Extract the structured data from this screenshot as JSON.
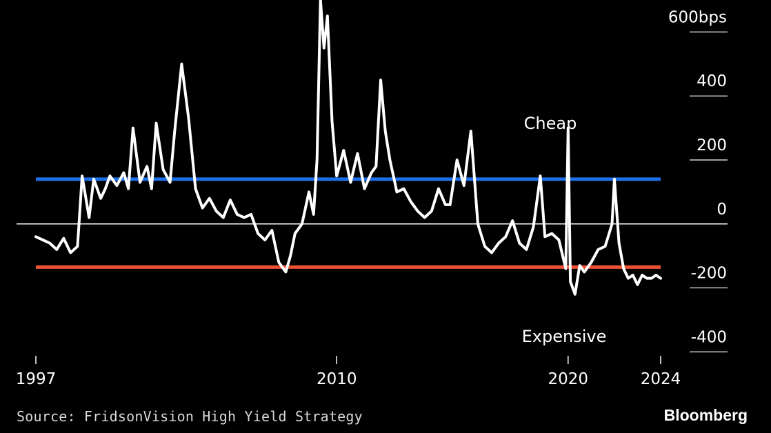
{
  "chart_data": {
    "type": "line",
    "x_ticks": [
      "1997",
      "2010",
      "2020",
      "2024"
    ],
    "y_ticks": [
      "600bps",
      "400",
      "200",
      "0",
      "-200",
      "-400"
    ],
    "y_tick_values": [
      600,
      400,
      200,
      0,
      -200,
      -400
    ],
    "ylim": [
      -410,
      700
    ],
    "xlim": [
      1997.0,
      2024.0
    ],
    "annotations": [
      "Cheap",
      "Expensive"
    ],
    "reference_lines": [
      {
        "value": 140,
        "color": "#1f6fe8"
      },
      {
        "value": 0,
        "color": "#ffffff"
      },
      {
        "value": -135,
        "color": "#ef5134"
      }
    ],
    "series": [
      {
        "color": "#ffffff",
        "x": [
          1997.0,
          1997.3,
          1997.6,
          1997.9,
          1998.2,
          1998.5,
          1998.8,
          1999.0,
          1999.3,
          1999.5,
          1999.8,
          2000.0,
          2000.2,
          2000.5,
          2000.8,
          2001.0,
          2001.2,
          2001.5,
          2001.8,
          2002.0,
          2002.2,
          2002.5,
          2002.8,
          2003.0,
          2003.3,
          2003.6,
          2003.9,
          2004.2,
          2004.5,
          2004.8,
          2005.1,
          2005.4,
          2005.7,
          2006.0,
          2006.3,
          2006.6,
          2006.9,
          2007.2,
          2007.5,
          2007.8,
          2008.0,
          2008.2,
          2008.5,
          2008.8,
          2009.0,
          2009.15,
          2009.3,
          2009.45,
          2009.6,
          2009.8,
          2010.0,
          2010.3,
          2010.6,
          2010.9,
          2011.2,
          2011.5,
          2011.7,
          2011.9,
          2012.1,
          2012.3,
          2012.6,
          2012.9,
          2013.2,
          2013.5,
          2013.8,
          2014.1,
          2014.4,
          2014.7,
          2014.9,
          2015.2,
          2015.5,
          2015.8,
          2016.1,
          2016.4,
          2016.7,
          2017.0,
          2017.3,
          2017.6,
          2017.9,
          2018.2,
          2018.5,
          2018.8,
          2019.0,
          2019.3,
          2019.6,
          2019.9,
          2020.0,
          2020.1,
          2020.3,
          2020.5,
          2020.7,
          2021.0,
          2021.3,
          2021.6,
          2021.9,
          2022.0,
          2022.2,
          2022.4,
          2022.6,
          2022.8,
          2023.0,
          2023.2,
          2023.4,
          2023.6,
          2023.8,
          2024.0
        ],
        "y": [
          -40,
          -50,
          -60,
          -80,
          -45,
          -90,
          -70,
          150,
          20,
          140,
          80,
          110,
          150,
          120,
          160,
          110,
          300,
          130,
          180,
          110,
          315,
          170,
          130,
          290,
          500,
          330,
          110,
          50,
          80,
          40,
          20,
          75,
          30,
          20,
          30,
          -30,
          -50,
          -20,
          -120,
          -150,
          -100,
          -30,
          0,
          100,
          30,
          200,
          700,
          550,
          650,
          320,
          150,
          230,
          130,
          220,
          110,
          160,
          180,
          450,
          290,
          200,
          100,
          110,
          70,
          40,
          20,
          40,
          110,
          60,
          60,
          200,
          120,
          290,
          0,
          -70,
          -90,
          -60,
          -40,
          10,
          -60,
          -80,
          -10,
          150,
          -40,
          -30,
          -50,
          -140,
          300,
          -180,
          -220,
          -130,
          -150,
          -120,
          -80,
          -70,
          0,
          140,
          -60,
          -140,
          -170,
          -160,
          -190,
          -160,
          -170,
          -170,
          -160,
          -170
        ]
      }
    ],
    "legend": "none"
  },
  "footer": {
    "source": "Source: FridsonVision High Yield Strategy",
    "brand": "Bloomberg"
  }
}
